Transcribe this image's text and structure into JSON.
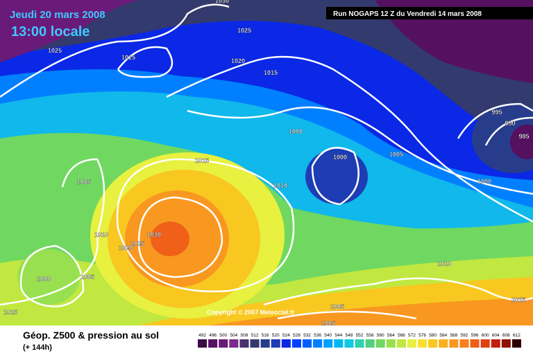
{
  "header": {
    "date": "Jeudi 20 mars 2008",
    "time": "13:00 locale",
    "run": "Run NOGAPS 12 Z du Vendredi 14 mars 2008"
  },
  "map": {
    "isobar_labels": [
      1030,
      1025,
      1025,
      1015,
      1020,
      1015,
      995,
      990,
      985,
      1000,
      1000,
      1005,
      1015,
      1005,
      1010,
      1000,
      1010,
      1030,
      1025,
      1020,
      1000,
      1005,
      1010,
      1015,
      1005,
      1005,
      1015
    ],
    "copyright": "Copyright © 2007 Meteociel.fr"
  },
  "footer": {
    "title": "Géop. Z500 & pression au sol",
    "subtitle": "(+ 144h)"
  },
  "legend": {
    "values": [
      492,
      496,
      500,
      504,
      508,
      512,
      516,
      520,
      524,
      528,
      532,
      536,
      540,
      544,
      548,
      552,
      556,
      560,
      564,
      568,
      572,
      576,
      580,
      584,
      588,
      592,
      596,
      600,
      604,
      608,
      612
    ],
    "colors": [
      "#3c0a46",
      "#551060",
      "#6a1a78",
      "#7a2a8a",
      "#4a3070",
      "#333a6e",
      "#283c8c",
      "#1e3cb4",
      "#0a28e6",
      "#0040ff",
      "#0060ff",
      "#0080ff",
      "#00a0ff",
      "#00b8f0",
      "#10c8e0",
      "#30d0b0",
      "#50d080",
      "#70d860",
      "#98e050",
      "#c0e840",
      "#e8f040",
      "#f8e030",
      "#f8c820",
      "#f8b020",
      "#f89820",
      "#f88020",
      "#f06018",
      "#e04010",
      "#c02010",
      "#901008",
      "#300000"
    ]
  }
}
